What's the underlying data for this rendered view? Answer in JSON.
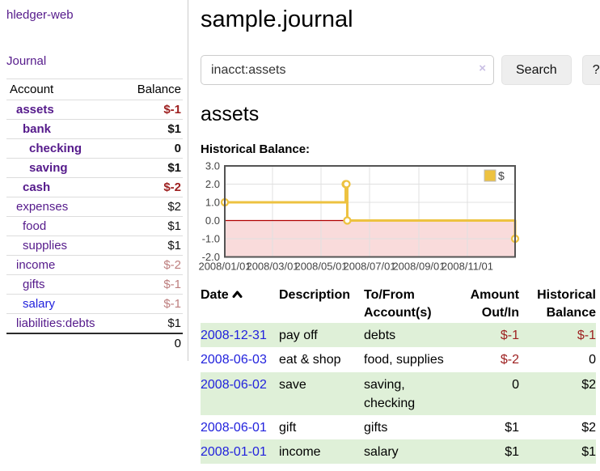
{
  "sidebar": {
    "brand": "hledger-web",
    "journal_link": "Journal",
    "accounts_table": {
      "account_header": "Account",
      "balance_header": "Balance",
      "rows": [
        {
          "name": "assets",
          "indent": 0,
          "bold": true,
          "link_color": "purple",
          "balance": "$-1",
          "balance_style": "negative-strong"
        },
        {
          "name": "bank",
          "indent": 1,
          "bold": true,
          "link_color": "purple",
          "balance": "$1",
          "balance_style": "normal"
        },
        {
          "name": "checking",
          "indent": 2,
          "bold": true,
          "link_color": "purple",
          "balance": "0",
          "balance_style": "normal"
        },
        {
          "name": "saving",
          "indent": 2,
          "bold": true,
          "link_color": "purple",
          "balance": "$1",
          "balance_style": "normal"
        },
        {
          "name": "cash",
          "indent": 1,
          "bold": true,
          "link_color": "purple",
          "balance": "$-2",
          "balance_style": "negative-strong"
        },
        {
          "name": "expenses",
          "indent": 0,
          "bold": false,
          "link_color": "purple",
          "balance": "$2",
          "balance_style": "normal"
        },
        {
          "name": "food",
          "indent": 1,
          "bold": false,
          "link_color": "purple",
          "balance": "$1",
          "balance_style": "normal"
        },
        {
          "name": "supplies",
          "indent": 1,
          "bold": false,
          "link_color": "purple",
          "balance": "$1",
          "balance_style": "normal"
        },
        {
          "name": "income",
          "indent": 0,
          "bold": false,
          "link_color": "purple",
          "balance": "$-2",
          "balance_style": "negative-soft"
        },
        {
          "name": "gifts",
          "indent": 1,
          "bold": false,
          "link_color": "purple",
          "balance": "$-1",
          "balance_style": "negative-soft"
        },
        {
          "name": "salary",
          "indent": 1,
          "bold": false,
          "link_color": "blue",
          "balance": "$-1",
          "balance_style": "negative-soft"
        },
        {
          "name": "liabilities:debts",
          "indent": 0,
          "bold": false,
          "link_color": "purple",
          "balance": "$1",
          "balance_style": "normal"
        }
      ],
      "total": "0"
    }
  },
  "header": {
    "title": "sample.journal"
  },
  "search": {
    "value": "inacct:assets",
    "clear_label": "×",
    "button_label": "Search",
    "help_label": "?"
  },
  "account_page": {
    "title": "assets"
  },
  "chart_data": {
    "type": "line",
    "title": "Historical Balance:",
    "series": [
      {
        "name": "$",
        "color": "#edc240",
        "steps": true,
        "points": [
          [
            "2008-01-01",
            1
          ],
          [
            "2008-06-01",
            2
          ],
          [
            "2008-06-02",
            2
          ],
          [
            "2008-06-03",
            0
          ],
          [
            "2008-12-31",
            -1
          ]
        ]
      }
    ],
    "x_range": [
      "2008-01-01",
      "2008-12-31"
    ],
    "x_ticks": [
      {
        "date": "2008-01-01",
        "label": "2008/01/01"
      },
      {
        "date": "2008-03-01",
        "label": "2008/03/01"
      },
      {
        "date": "2008-05-01",
        "label": "2008/05/01"
      },
      {
        "date": "2008-07-01",
        "label": "2008/07/01"
      },
      {
        "date": "2008-09-01",
        "label": "2008/09/01"
      },
      {
        "date": "2008-11-01",
        "label": "2008/11/01"
      }
    ],
    "y_ticks": [
      {
        "v": 3,
        "label": "3.0"
      },
      {
        "v": 2,
        "label": "2.0"
      },
      {
        "v": 1,
        "label": "1.0"
      },
      {
        "v": 0,
        "label": "0.0"
      },
      {
        "v": -1,
        "label": "-1.0"
      },
      {
        "v": -2,
        "label": "-2.0"
      }
    ],
    "ylim": [
      -2,
      3
    ],
    "grid": true,
    "legend": {
      "label": "$",
      "position": "top-right"
    },
    "colors": {
      "negative_fill": "#f9dbdb",
      "zero_line": "#b00000",
      "gridline": "#e0e0e0",
      "border": "#545454"
    }
  },
  "register": {
    "columns": [
      {
        "l1": "Date",
        "sort": "ascending"
      },
      {
        "l1": "Description"
      },
      {
        "l1": "To/From",
        "l2": "Account(s)"
      },
      {
        "l1": "Amount",
        "l2": "Out/In"
      },
      {
        "l1": "Historical",
        "l2": "Balance"
      }
    ],
    "rows": [
      {
        "date": "2008-12-31",
        "description": "pay off",
        "accounts": "debts",
        "amount": "$-1",
        "balance": "$-1",
        "amount_negative": true,
        "balance_negative": true,
        "highlight": true
      },
      {
        "date": "2008-06-03",
        "description": "eat & shop",
        "accounts": "food, supplies",
        "amount": "$-2",
        "balance": "0",
        "amount_negative": true,
        "balance_negative": false,
        "highlight": false
      },
      {
        "date": "2008-06-02",
        "description": "save",
        "accounts": "saving, checking",
        "amount": "0",
        "balance": "$2",
        "amount_negative": false,
        "balance_negative": false,
        "highlight": true
      },
      {
        "date": "2008-06-01",
        "description": "gift",
        "accounts": "gifts",
        "amount": "$1",
        "balance": "$2",
        "amount_negative": false,
        "balance_negative": false,
        "highlight": false
      },
      {
        "date": "2008-01-01",
        "description": "income",
        "accounts": "salary",
        "amount": "$1",
        "balance": "$1",
        "amount_negative": false,
        "balance_negative": false,
        "highlight": true
      }
    ]
  },
  "colors": {
    "link_purple": "#551a8b",
    "link_blue": "#2222dd",
    "negative_strong": "#9d1f1f",
    "negative_soft": "#bd7e7e",
    "row_highlight": "#dff0d8"
  }
}
